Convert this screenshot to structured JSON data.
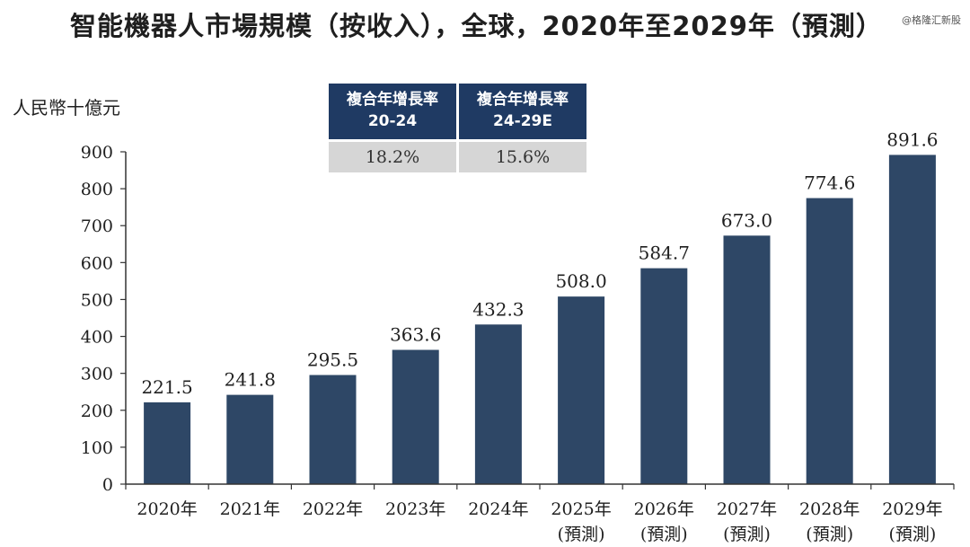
{
  "title": "智能機器人市場規模（按收入），全球，2020年至2029年（預測）",
  "watermark": "@格隆汇新股",
  "colors": {
    "bar": "#2e4766",
    "header": "#1f3a63",
    "cell": "#d6d6d6"
  },
  "cagr": [
    {
      "label_line1": "複合年增長率",
      "label_line2": "20-24",
      "value": "18.2%"
    },
    {
      "label_line1": "複合年增長率",
      "label_line2": "24-29E",
      "value": "15.6%"
    }
  ],
  "chart_data": {
    "type": "bar",
    "title": "智能機器人市場規模（按收入），全球，2020年至2029年（預測）",
    "ylabel": "人民幣十億元",
    "ylim": [
      0,
      900
    ],
    "yticks": [
      0,
      100,
      200,
      300,
      400,
      500,
      600,
      700,
      800,
      900
    ],
    "grid": false,
    "categories": [
      {
        "year": "2020年",
        "note": ""
      },
      {
        "year": "2021年",
        "note": ""
      },
      {
        "year": "2022年",
        "note": ""
      },
      {
        "year": "2023年",
        "note": ""
      },
      {
        "year": "2024年",
        "note": ""
      },
      {
        "year": "2025年",
        "note": "(預測)"
      },
      {
        "year": "2026年",
        "note": "(預測)"
      },
      {
        "year": "2027年",
        "note": "(預測)"
      },
      {
        "year": "2028年",
        "note": "(預測)"
      },
      {
        "year": "2029年",
        "note": "(預測)"
      }
    ],
    "values": [
      221.5,
      241.8,
      295.5,
      363.6,
      432.3,
      508.0,
      584.7,
      673.0,
      774.6,
      891.6
    ],
    "value_labels": [
      "221.5",
      "241.8",
      "295.5",
      "363.6",
      "432.3",
      "508.0",
      "584.7",
      "673.0",
      "774.6",
      "891.6"
    ]
  }
}
